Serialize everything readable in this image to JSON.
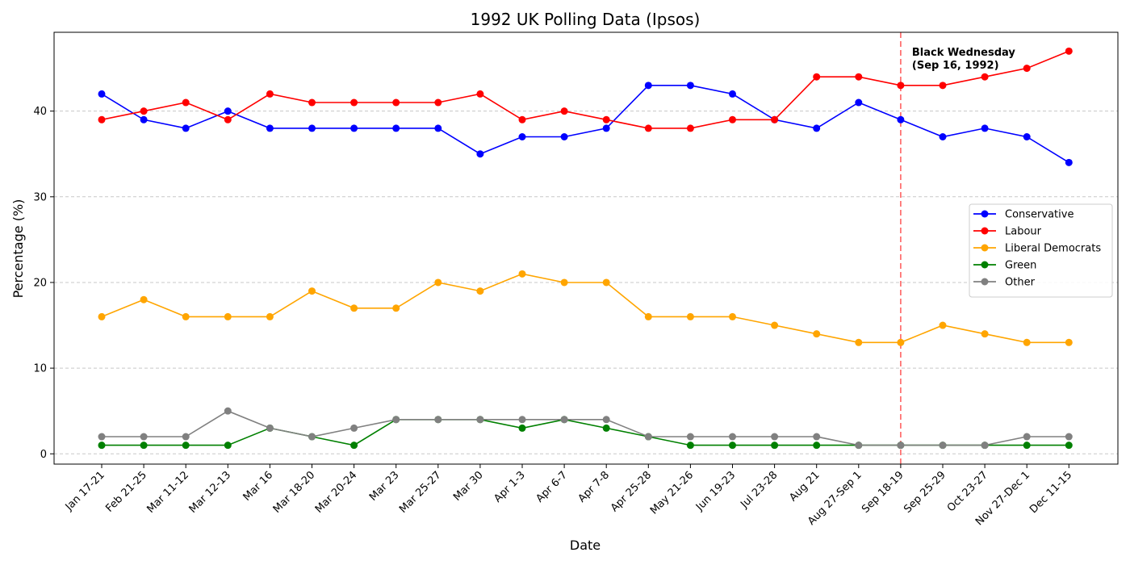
{
  "chart_data": {
    "type": "line",
    "title": "1992 UK Polling Data (Ipsos)",
    "xlabel": "Date",
    "ylabel": "Percentage (%)",
    "ylim": [
      -1.2,
      49.2
    ],
    "yticks": [
      0,
      10,
      20,
      30,
      40
    ],
    "grid": "y-dashed",
    "legend_position": "right",
    "categories": [
      "Jan 17-21",
      "Feb 21-25",
      "Mar 11-12",
      "Mar 12-13",
      "Mar 16",
      "Mar 18-20",
      "Mar 20-24",
      "Mar 23",
      "Mar 25-27",
      "Mar 30",
      "Apr 1-3",
      "Apr 6-7",
      "Apr 7-8",
      "Apr 25-28",
      "May 21-26",
      "Jun 19-23",
      "Jul 23-28",
      "Aug 21",
      "Aug 27-Sep 1",
      "Sep 18-19",
      "Sep 25-29",
      "Oct 23-27",
      "Nov 27-Dec 1",
      "Dec 11-15"
    ],
    "series": [
      {
        "name": "Conservative",
        "color": "#0000ff",
        "values": [
          42,
          39,
          38,
          40,
          38,
          38,
          38,
          38,
          38,
          35,
          37,
          37,
          38,
          43,
          43,
          42,
          39,
          38,
          41,
          39,
          37,
          38,
          37,
          34
        ]
      },
      {
        "name": "Labour",
        "color": "#ff0000",
        "values": [
          39,
          40,
          41,
          39,
          42,
          41,
          41,
          41,
          41,
          42,
          39,
          40,
          39,
          38,
          38,
          39,
          39,
          44,
          44,
          43,
          43,
          44,
          45,
          47
        ]
      },
      {
        "name": "Liberal Democrats",
        "color": "#ffa500",
        "values": [
          16,
          18,
          16,
          16,
          16,
          19,
          17,
          17,
          20,
          19,
          21,
          20,
          20,
          16,
          16,
          16,
          15,
          14,
          13,
          13,
          15,
          14,
          13,
          13
        ]
      },
      {
        "name": "Green",
        "color": "#008000",
        "values": [
          1,
          1,
          1,
          1,
          3,
          2,
          1,
          4,
          4,
          4,
          3,
          4,
          3,
          2,
          1,
          1,
          1,
          1,
          1,
          1,
          1,
          1,
          1,
          1
        ]
      },
      {
        "name": "Other",
        "color": "#808080",
        "values": [
          2,
          2,
          2,
          5,
          3,
          2,
          3,
          4,
          4,
          4,
          4,
          4,
          4,
          2,
          2,
          2,
          2,
          2,
          1,
          1,
          1,
          1,
          2,
          2
        ]
      }
    ],
    "annotations": [
      {
        "category": "Sep 18-19",
        "line_color": "#ff0000",
        "line_style": "dashed",
        "text_line1": "Black Wednesday",
        "text_line2": "(Sep 16, 1992)"
      }
    ]
  }
}
